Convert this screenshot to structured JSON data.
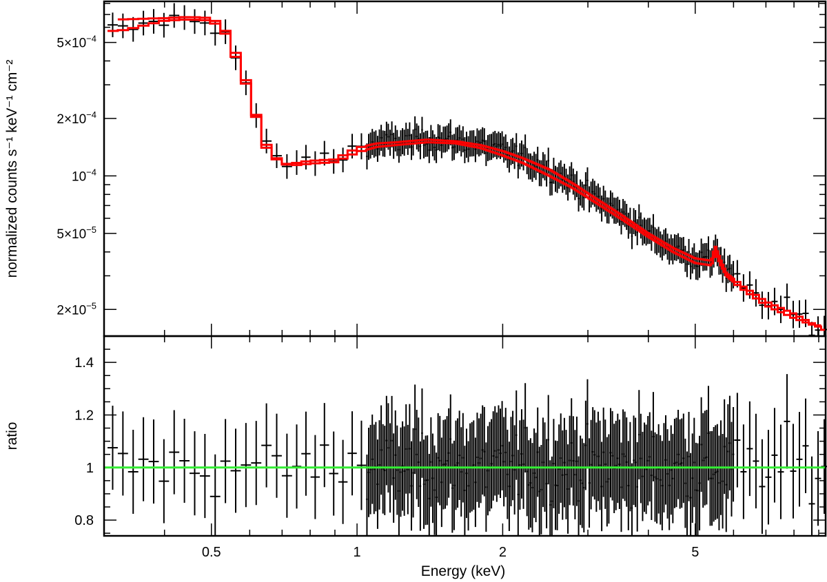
{
  "chart_data": [
    {
      "type": "scatter",
      "panel": "spectrum",
      "ylabel": "normalized counts s⁻¹ keV⁻¹ cm⁻²",
      "xscale": "log",
      "yscale": "log",
      "xlim": [
        0.3,
        9.3
      ],
      "ylim": [
        1.45e-05,
        0.00082
      ],
      "ytick_labels": [
        {
          "value": 0.0005,
          "base": "5×10",
          "exp": "−4"
        },
        {
          "value": 0.0002,
          "base": "2×10",
          "exp": "−4"
        },
        {
          "value": 0.0001,
          "base": "10",
          "exp": "−4"
        },
        {
          "value": 5e-05,
          "base": "5×10",
          "exp": "−5"
        },
        {
          "value": 2e-05,
          "base": "2×10",
          "exp": "−5"
        }
      ],
      "data_color": "#000000",
      "model_color": "#ff0000",
      "model_a": {
        "x": [
          0.3,
          0.33,
          0.37,
          0.4,
          0.45,
          0.5,
          0.53,
          0.55,
          0.57,
          0.6,
          0.62,
          0.65,
          0.68,
          0.7,
          0.75,
          0.8,
          0.9,
          1.0,
          1.1,
          1.2,
          1.4,
          1.6,
          1.8,
          2.0,
          2.2,
          2.5,
          2.8,
          3.0,
          3.5,
          4.0,
          4.5,
          5.0,
          5.4,
          5.5,
          5.65,
          5.8,
          6.2,
          7.0,
          8.0,
          9.3
        ],
        "y": [
          0.00057,
          0.00058,
          0.00062,
          0.00065,
          0.00066,
          0.00065,
          0.00058,
          0.00048,
          0.00038,
          0.00027,
          0.0002,
          0.00014,
          0.000123,
          0.000115,
          0.000117,
          0.00012,
          0.000122,
          0.00014,
          0.000148,
          0.00015,
          0.000155,
          0.000152,
          0.000145,
          0.000135,
          0.000124,
          0.000108,
          9.1e-05,
          8.1e-05,
          6.3e-05,
          5e-05,
          4.2e-05,
          3.7e-05,
          3.6e-05,
          4.3e-05,
          3.6e-05,
          3.1e-05,
          2.7e-05,
          2.2e-05,
          1.9e-05,
          1.55e-05
        ]
      },
      "model_b": {
        "x": [
          0.33,
          0.4,
          0.45,
          0.5,
          0.53,
          0.55,
          0.57,
          0.6,
          0.62,
          0.65,
          0.68,
          0.7,
          0.75,
          0.8,
          0.9,
          1.0,
          1.1,
          1.2,
          1.4,
          1.6,
          1.8,
          2.0,
          2.2,
          2.5,
          2.8,
          3.0,
          3.5,
          4.0,
          4.5,
          5.0,
          5.4,
          5.5,
          5.65,
          5.8,
          6.2,
          7.0,
          8.0,
          8.8
        ],
        "y": [
          0.00066,
          0.00067,
          0.00068,
          0.00067,
          0.0006,
          0.0005,
          0.0004,
          0.00028,
          0.000205,
          0.000145,
          0.000125,
          0.000115,
          0.000114,
          0.000116,
          0.000118,
          0.000133,
          0.000142,
          0.000145,
          0.00015,
          0.000148,
          0.00014,
          0.000128,
          0.000117,
          0.0001,
          8.6e-05,
          7.7e-05,
          6e-05,
          4.8e-05,
          4e-05,
          3.5e-05,
          3.4e-05,
          4e-05,
          3.4e-05,
          3e-05,
          2.6e-05,
          2.1e-05,
          1.8e-05,
          1.65e-05
        ]
      }
    },
    {
      "type": "scatter",
      "panel": "ratio",
      "xlabel": "Energy (keV)",
      "ylabel": "ratio",
      "xscale": "log",
      "yscale": "linear",
      "xlim": [
        0.3,
        9.3
      ],
      "ylim": [
        0.74,
        1.5
      ],
      "xticks_major": [
        0.5,
        1,
        2,
        5
      ],
      "xtick_labels": [
        "0.5",
        "1",
        "2",
        "5"
      ],
      "yticks_major": [
        0.8,
        1.2,
        1.4
      ],
      "ytick_labels": [
        "0.8",
        "1",
        "1.2",
        "1.4"
      ],
      "ytick_label_values": [
        0.8,
        1.0,
        1.2,
        1.4
      ],
      "reference_line": {
        "y": 1,
        "color": "#33ee33"
      },
      "data_color": "#000000"
    }
  ]
}
